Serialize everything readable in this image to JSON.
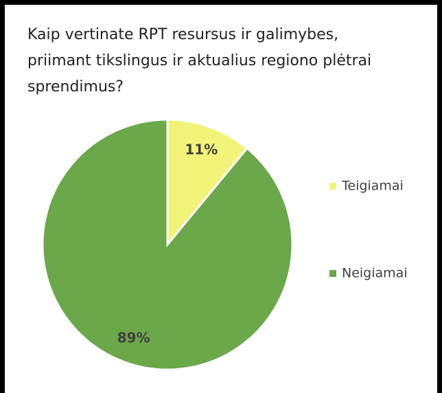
{
  "chart_data": {
    "type": "pie",
    "title": "Kaip vertinate RPT resursus ir galimybes, priimant tikslingus ir aktualius regiono plėtrai sprendimus?",
    "categories": [
      "Teigiamai",
      "Neigiamai"
    ],
    "values": [
      11,
      89
    ],
    "value_labels": [
      "11%",
      "89%"
    ],
    "colors": [
      "#f2f47a",
      "#6aa84a"
    ],
    "legend": "right"
  }
}
